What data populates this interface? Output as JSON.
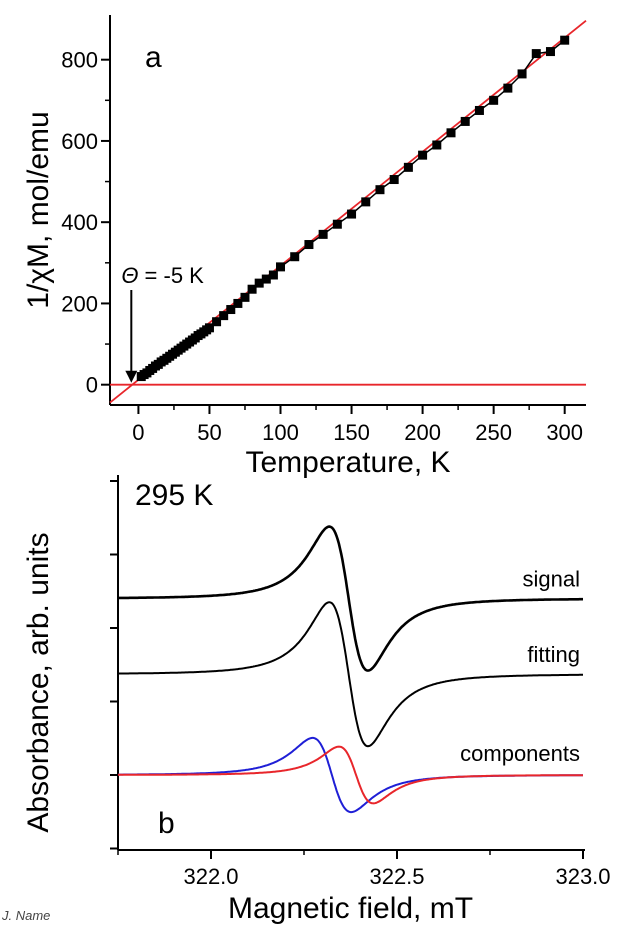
{
  "chart_data": [
    {
      "type": "scatter",
      "panel": "a",
      "xlabel": "Temperature, K",
      "ylabel": "1/χM, mol/emu",
      "xlim": [
        -20,
        315
      ],
      "ylim": [
        -50,
        910
      ],
      "xticks": [
        0,
        50,
        100,
        150,
        200,
        250,
        300
      ],
      "yticks": [
        0,
        200,
        400,
        600,
        800
      ],
      "annotation": {
        "text": "Θ = -5 K",
        "x": -5,
        "y": 0
      },
      "series": [
        {
          "kind": "points",
          "color": "#000000",
          "x": [
            2,
            4,
            6,
            8,
            10,
            12,
            14,
            16,
            18,
            20,
            22,
            24,
            26,
            28,
            30,
            32,
            34,
            36,
            38,
            40,
            42,
            44,
            46,
            48,
            50,
            55,
            60,
            65,
            70,
            75,
            80,
            85,
            90,
            95,
            100,
            110,
            120,
            130,
            140,
            150,
            160,
            170,
            180,
            190,
            200,
            210,
            220,
            230,
            240,
            250,
            260,
            270,
            280,
            290,
            300
          ],
          "y": [
            20,
            25,
            29,
            35,
            40,
            46,
            50,
            56,
            60,
            65,
            70,
            75,
            80,
            85,
            90,
            95,
            100,
            105,
            110,
            115,
            121,
            125,
            130,
            135,
            140,
            155,
            170,
            185,
            200,
            215,
            235,
            250,
            260,
            270,
            290,
            315,
            345,
            370,
            395,
            420,
            450,
            480,
            505,
            535,
            565,
            590,
            620,
            648,
            675,
            700,
            730,
            765,
            815,
            820,
            848
          ]
        },
        {
          "kind": "fit-line",
          "color": "#e8262b",
          "x": [
            -20,
            315
          ],
          "y": [
            -44,
            896
          ]
        },
        {
          "kind": "zero-line",
          "color": "#e8262b",
          "x": [
            -20,
            315
          ],
          "y": [
            0,
            0
          ]
        }
      ]
    },
    {
      "type": "line",
      "panel": "b",
      "xlabel": "Magnetic field, mT",
      "ylabel": "Absorbance, arb. units",
      "xlim": [
        321.75,
        323.0
      ],
      "xticks": [
        "322.0",
        "322.5",
        "323.0"
      ],
      "yticks_unlabeled": true,
      "annotation_temperature": "295 K",
      "series": [
        {
          "name": "signal",
          "color": "#000000",
          "baseline": 4.2,
          "components": [
            {
              "center": 322.37,
              "width": 0.09,
              "amplitude": 1.65
            }
          ]
        },
        {
          "name": "fitting",
          "color": "#000000",
          "baseline": 2.4,
          "components": [
            {
              "center": 322.37,
              "width": 0.09,
              "amplitude": 1.65
            }
          ]
        },
        {
          "name": "",
          "color": "#1f1fd6",
          "baseline": 0.0,
          "components": [
            {
              "center": 322.325,
              "width": 0.09,
              "amplitude": 0.85
            }
          ]
        },
        {
          "name": "",
          "color": "#e8262b",
          "baseline": 0.0,
          "components": [
            {
              "center": 322.39,
              "width": 0.08,
              "amplitude": 0.65
            }
          ]
        }
      ],
      "series_labels": [
        "signal",
        "fitting",
        "components"
      ]
    }
  ],
  "footer_text": "J. Name"
}
